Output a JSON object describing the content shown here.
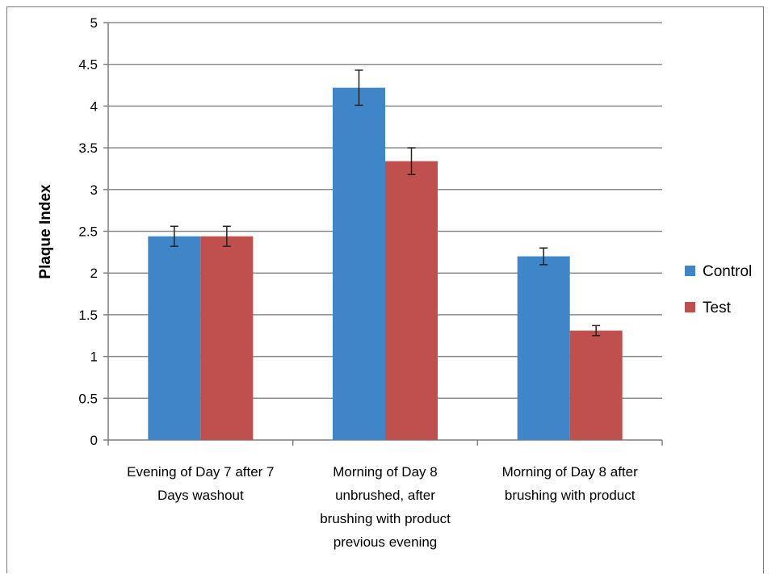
{
  "chart_data": {
    "type": "bar",
    "title": "",
    "xlabel": "",
    "ylabel": "Plaque Index",
    "ylim": [
      0,
      5
    ],
    "yticks": [
      "0",
      "0.5",
      "1",
      "1.5",
      "2",
      "2.5",
      "3",
      "3.5",
      "4",
      "4.5",
      "5"
    ],
    "categories": [
      [
        "Evening of Day 7 after 7",
        "Days washout"
      ],
      [
        "Morning of Day 8",
        "unbrushed, after",
        "brushing with product",
        "previous evening"
      ],
      [
        "Morning of Day 8 after",
        "brushing with product"
      ]
    ],
    "series": [
      {
        "name": "Control",
        "color": "#3f86c8",
        "values": [
          2.44,
          4.22,
          2.2
        ],
        "error": [
          0.12,
          0.21,
          0.1
        ]
      },
      {
        "name": "Test",
        "color": "#c0504d",
        "values": [
          2.44,
          3.34,
          1.31
        ],
        "error": [
          0.12,
          0.16,
          0.06
        ]
      }
    ],
    "grid": true,
    "legend_position": "right"
  }
}
